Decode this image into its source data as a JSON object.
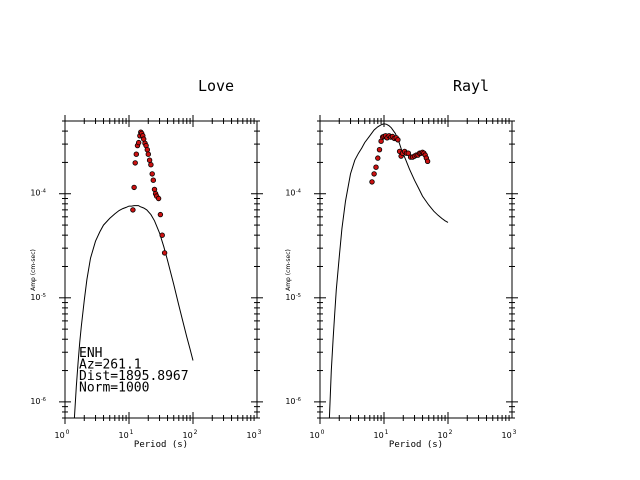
{
  "chart_data": [
    {
      "type": "scatter",
      "title": "Love",
      "xlabel": "Period (s)",
      "ylabel": "Amp (cm-sec)",
      "xscale": "log",
      "yscale": "log",
      "xlim": [
        1,
        1000
      ],
      "ylim": [
        7e-07,
        0.0005
      ],
      "x_ticks": [
        {
          "value": 1,
          "base": "10",
          "exp": "0"
        },
        {
          "value": 10,
          "base": "10",
          "exp": "1"
        },
        {
          "value": 100,
          "base": "10",
          "exp": "2"
        },
        {
          "value": 1000,
          "base": "10",
          "exp": "3"
        }
      ],
      "y_ticks": [
        {
          "value": 1e-06,
          "base": "10",
          "exp": "-6"
        },
        {
          "value": 1e-05,
          "base": "10",
          "exp": "-5"
        },
        {
          "value": 0.0001,
          "base": "10",
          "exp": "-4"
        }
      ],
      "annotation": [
        "ENH",
        "Az=261.1",
        "Dist=1895.8967",
        "Norm=1000"
      ],
      "series": [
        {
          "kind": "line",
          "color": "#000000",
          "x": [
            1.4,
            1.5,
            1.6,
            1.7,
            1.8,
            2.0,
            2.2,
            2.5,
            3.0,
            3.5,
            4.0,
            5.0,
            6.0,
            7.0,
            8.0,
            9.0,
            10.0,
            11.0,
            12.0,
            13.0,
            14.0,
            15.0,
            17.0,
            19.0,
            22.0,
            25.0,
            30.0,
            35.0,
            40.0,
            50.0,
            60.0,
            70.0,
            80.0,
            90.0,
            100.0
          ],
          "y": [
            7e-07,
            1.4e-06,
            2.4e-06,
            3.7e-06,
            5.3e-06,
            9.5e-06,
            1.5e-05,
            2.4e-05,
            3.5e-05,
            4.3e-05,
            5e-05,
            5.8e-05,
            6.4e-05,
            6.9e-05,
            7.2e-05,
            7.4e-05,
            7.6e-05,
            7.6e-05,
            7.7e-05,
            7.7e-05,
            7.7e-05,
            7.5e-05,
            7.3e-05,
            7e-05,
            6.3e-05,
            5.5e-05,
            4.2e-05,
            3.1e-05,
            2.3e-05,
            1.35e-05,
            8.5e-06,
            5.8e-06,
            4.2e-06,
            3.2e-06,
            2.5e-06
          ]
        },
        {
          "kind": "points",
          "color": "#cc1111",
          "x": [
            11.5,
            12.0,
            12.5,
            13.0,
            13.6,
            14.2,
            14.8,
            15.3,
            15.8,
            16.4,
            17.0,
            17.8,
            18.5,
            19.3,
            20.0,
            21.0,
            22.0,
            23.0,
            24.0,
            25.0,
            26.0,
            27.0,
            29.0,
            31.0,
            33.0,
            36.0
          ],
          "y": [
            7e-05,
            0.000115,
            0.000198,
            0.00024,
            0.00029,
            0.00031,
            0.00036,
            0.00039,
            0.00038,
            0.00036,
            0.000335,
            0.000305,
            0.00029,
            0.000265,
            0.00024,
            0.00021,
            0.00019,
            0.000155,
            0.000135,
            0.00011,
            0.0001,
            9.5e-05,
            9e-05,
            6.3e-05,
            4e-05,
            2.7e-05
          ]
        }
      ]
    },
    {
      "type": "scatter",
      "title": "Rayl",
      "xlabel": "Period (s)",
      "ylabel": "Amp (cm-sec)",
      "xscale": "log",
      "yscale": "log",
      "xlim": [
        1,
        1000
      ],
      "ylim": [
        7e-07,
        0.0005
      ],
      "x_ticks": [
        {
          "value": 1,
          "base": "10",
          "exp": "0"
        },
        {
          "value": 10,
          "base": "10",
          "exp": "1"
        },
        {
          "value": 100,
          "base": "10",
          "exp": "2"
        },
        {
          "value": 1000,
          "base": "10",
          "exp": "3"
        }
      ],
      "y_ticks": [
        {
          "value": 1e-06,
          "base": "10",
          "exp": "-6"
        },
        {
          "value": 1e-05,
          "base": "10",
          "exp": "-5"
        },
        {
          "value": 0.0001,
          "base": "10",
          "exp": "-4"
        }
      ],
      "annotation": [],
      "series": [
        {
          "kind": "line",
          "color": "#000000",
          "x": [
            1.4,
            1.5,
            1.6,
            1.7,
            1.8,
            2.0,
            2.2,
            2.5,
            3.0,
            3.5,
            4.0,
            4.5,
            5.0,
            6.0,
            7.0,
            8.0,
            9.0,
            10.0,
            11.0,
            12.0,
            13.0,
            15.0,
            17.0,
            19.0,
            22.0,
            25.0,
            30.0,
            35.0,
            40.0,
            50.0,
            60.0,
            70.0,
            80.0,
            90.0,
            100.0
          ],
          "y": [
            7e-07,
            2e-06,
            4e-06,
            7e-06,
            1.2e-05,
            2.5e-05,
            4.6e-05,
            8.5e-05,
            0.000155,
            0.00021,
            0.000245,
            0.000275,
            0.00031,
            0.00036,
            0.00041,
            0.00044,
            0.00046,
            0.00047,
            0.000465,
            0.00045,
            0.00043,
            0.00038,
            0.00032,
            0.00026,
            0.00021,
            0.000172,
            0.000135,
            0.000112,
            9.5e-05,
            7.8e-05,
            6.8e-05,
            6.2e-05,
            5.8e-05,
            5.5e-05,
            5.3e-05
          ]
        },
        {
          "kind": "points",
          "color": "#cc1111",
          "x": [
            6.5,
            7.0,
            7.5,
            8.0,
            8.5,
            9.0,
            9.5,
            10.0,
            10.6,
            11.2,
            12.0,
            12.8,
            13.6,
            14.5,
            15.5,
            16.5,
            17.5,
            18.5,
            19.5,
            21.0,
            22.5,
            24.0,
            26.0,
            28.0,
            30.0,
            32.0,
            34.0,
            36.0,
            38.0,
            40.0,
            42.0,
            44.0,
            46.0,
            48.0
          ],
          "y": [
            0.00013,
            0.000155,
            0.00018,
            0.00022,
            0.000265,
            0.00032,
            0.00035,
            0.000355,
            0.00036,
            0.000345,
            0.00036,
            0.00035,
            0.000355,
            0.00034,
            0.000345,
            0.00033,
            0.000255,
            0.00023,
            0.000245,
            0.000255,
            0.000245,
            0.000245,
            0.000225,
            0.000225,
            0.00023,
            0.000235,
            0.000235,
            0.000245,
            0.000245,
            0.00025,
            0.000245,
            0.000235,
            0.00022,
            0.000205
          ]
        }
      ]
    }
  ]
}
